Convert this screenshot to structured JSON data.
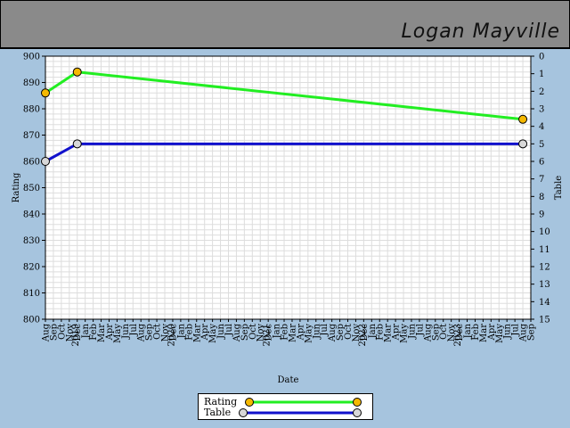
{
  "header": {
    "player_name": "Logan Mayville"
  },
  "colors": {
    "rating": "#22ee22",
    "table": "#1111cc",
    "rating_marker": "#f5b800",
    "table_marker": "#d8d8d8",
    "grid": "#dddddd",
    "background": "#a6c4de",
    "header_bg": "#8a8a8a"
  },
  "chart_data": {
    "type": "line",
    "title": "",
    "xlabel": "Date",
    "ylabel": "Rating",
    "y2label": "Table",
    "ylim": [
      800,
      900
    ],
    "y2lim": [
      0,
      15
    ],
    "y2_inverted": true,
    "yticks": [
      "900",
      "890",
      "880",
      "870",
      "860",
      "850",
      "840",
      "830",
      "820",
      "810",
      "800"
    ],
    "y2ticks": [
      "0",
      "1",
      "2",
      "3",
      "4",
      "5",
      "6",
      "7",
      "8",
      "9",
      "10",
      "11",
      "12",
      "13",
      "14",
      "15"
    ],
    "months": [
      "Aug",
      "Sep",
      "Oct",
      "Nov",
      "Dec",
      "Jan",
      "Feb",
      "Mar",
      "Apr",
      "May",
      "Jun",
      "Jul",
      "Aug",
      "Sep",
      "Oct",
      "Nov",
      "Dec",
      "Jan",
      "Feb",
      "Mar",
      "Apr",
      "May",
      "Jun",
      "Jul",
      "Aug",
      "Sep",
      "Oct",
      "Nov",
      "Dec",
      "Jan",
      "Feb",
      "Mar",
      "Apr",
      "May",
      "Jun",
      "Jul",
      "Aug",
      "Sep",
      "Oct",
      "Nov",
      "Dec",
      "Jan",
      "Feb",
      "Mar",
      "Apr",
      "May",
      "Jun",
      "Jul",
      "Aug",
      "Sep",
      "Oct",
      "Nov",
      "Dec",
      "Jan",
      "Feb",
      "Mar",
      "Apr",
      "May",
      "Jun",
      "Jul",
      "Aug",
      "Sep"
    ],
    "year_labels": [
      {
        "month_index": 5,
        "label": "2019"
      },
      {
        "month_index": 17,
        "label": "2020"
      },
      {
        "month_index": 29,
        "label": "2021"
      },
      {
        "month_index": 41,
        "label": "2022"
      },
      {
        "month_index": 53,
        "label": "2023"
      }
    ],
    "grid": true,
    "legend_position": "bottom-center",
    "series": [
      {
        "name": "Rating",
        "axis": "left",
        "points": [
          {
            "x": "2018-08",
            "y": 886
          },
          {
            "x": "2018-12",
            "y": 894
          },
          {
            "x": "2023-08",
            "y": 876
          }
        ]
      },
      {
        "name": "Table",
        "axis": "right",
        "points": [
          {
            "x": "2018-08",
            "y": 6
          },
          {
            "x": "2018-12",
            "y": 5
          },
          {
            "x": "2023-08",
            "y": 5
          }
        ]
      }
    ]
  }
}
